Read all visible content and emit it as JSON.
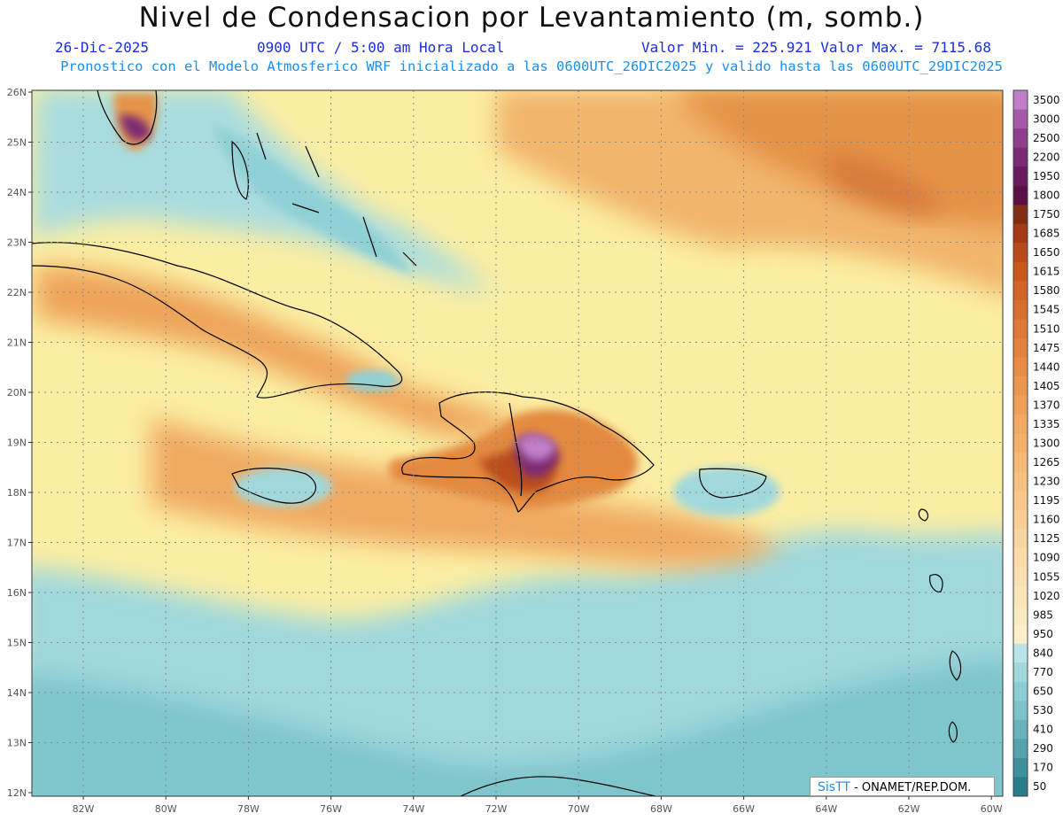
{
  "header": {
    "title": "Nivel de Condensacion por Levantamiento (m, somb.)",
    "date": "26-Dic-2025",
    "time": "0900 UTC / 5:00 am Hora Local",
    "min_max": "Valor Min. = 225.921  Valor Max. = 7115.68",
    "forecast": "Pronostico con el Modelo Atmosferico WRF inicializado a las 0600UTC_26DIC2025 y valido hasta las  0600UTC_29DIC2025"
  },
  "map": {
    "lat_labels": [
      "26N",
      "25N",
      "24N",
      "23N",
      "22N",
      "21N",
      "20N",
      "19N",
      "18N",
      "17N",
      "16N",
      "15N",
      "14N",
      "13N",
      "12N"
    ],
    "lon_labels": [
      "82W",
      "80W",
      "78W",
      "76W",
      "74W",
      "72W",
      "70W",
      "68W",
      "66W",
      "64W",
      "62W",
      "60W"
    ],
    "colors": {
      "sea_low": "#9fd8dd",
      "mid": "#fbeea3",
      "high": "#e89a4a",
      "peak": "#9a3f8c"
    }
  },
  "colorbar": {
    "levels": [
      "3500",
      "3000",
      "2500",
      "2200",
      "1950",
      "1800",
      "1750",
      "1685",
      "1650",
      "1615",
      "1580",
      "1545",
      "1510",
      "1475",
      "1440",
      "1405",
      "1370",
      "1335",
      "1300",
      "1265",
      "1230",
      "1195",
      "1160",
      "1125",
      "1090",
      "1055",
      "1020",
      "985",
      "950",
      "840",
      "770",
      "650",
      "530",
      "410",
      "290",
      "170",
      "50"
    ],
    "colors": [
      "#c07fc6",
      "#a65aa7",
      "#8e3e8a",
      "#7b2a74",
      "#6a1a5e",
      "#5a0f45",
      "#7f2a12",
      "#a33c16",
      "#b94a1a",
      "#c9581f",
      "#d26327",
      "#d96d2e",
      "#de7836",
      "#e3823d",
      "#e88c45",
      "#ec974f",
      "#ef9f58",
      "#f1a862",
      "#f3b06d",
      "#f5b877",
      "#f6c081",
      "#f7c78b",
      "#f8ce95",
      "#f9d59f",
      "#fadba9",
      "#fbe1b2",
      "#fce6ba",
      "#fcebc1",
      "#fdf0c8",
      "#b9e4e7",
      "#a0d8dd",
      "#8ccdd4",
      "#7bc1ca",
      "#67b2bd",
      "#53a2ae",
      "#3d909e",
      "#287e8d"
    ]
  },
  "credit": {
    "brand": "SisTT",
    "org": "- ONAMET/REP.DOM."
  }
}
